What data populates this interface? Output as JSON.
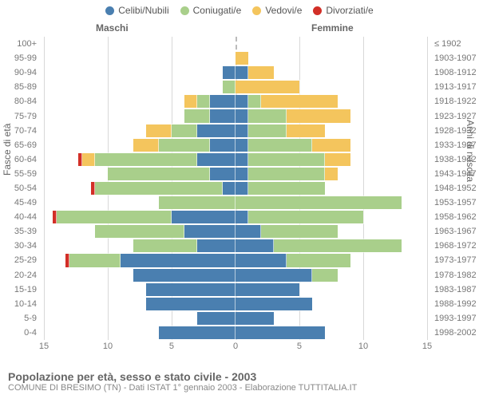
{
  "legend": {
    "items": [
      {
        "key": "single",
        "label": "Celibi/Nubili",
        "color": "#4a7fb0"
      },
      {
        "key": "married",
        "label": "Coniugati/e",
        "color": "#a9cf8b"
      },
      {
        "key": "widowed",
        "label": "Vedovi/e",
        "color": "#f4c55d"
      },
      {
        "key": "divorced",
        "label": "Divorziati/e",
        "color": "#d22f27"
      }
    ]
  },
  "column_heads": {
    "male": "Maschi",
    "female": "Femmine"
  },
  "axis_titles": {
    "left": "Fasce di età",
    "right": "Anni di nascita"
  },
  "footer": {
    "title": "Popolazione per età, sesso e stato civile - 2003",
    "subtitle": "COMUNE DI BRESIMO (TN) - Dati ISTAT 1° gennaio 2003 - Elaborazione TUTTITALIA.IT"
  },
  "colors": {
    "single": "#4a7fb0",
    "married": "#a9cf8b",
    "widowed": "#f4c55d",
    "divorced": "#d22f27",
    "grid": "#dddddd",
    "background": "#ffffff"
  },
  "x_axis": {
    "min": -15,
    "max": 15,
    "ticks": [
      15,
      10,
      5,
      0,
      5,
      10,
      15
    ],
    "positions": [
      -15,
      -10,
      -5,
      0,
      5,
      10,
      15
    ]
  },
  "rows": [
    {
      "age": "100+",
      "birth": "≤ 1902",
      "male": {
        "single": 0,
        "married": 0,
        "widowed": 0,
        "divorced": 0
      },
      "female": {
        "single": 0,
        "married": 0,
        "widowed": 0,
        "divorced": 0
      }
    },
    {
      "age": "95-99",
      "birth": "1903-1907",
      "male": {
        "single": 0,
        "married": 0,
        "widowed": 0,
        "divorced": 0
      },
      "female": {
        "single": 0,
        "married": 0,
        "widowed": 1,
        "divorced": 0
      }
    },
    {
      "age": "90-94",
      "birth": "1908-1912",
      "male": {
        "single": 1,
        "married": 0,
        "widowed": 0,
        "divorced": 0
      },
      "female": {
        "single": 1,
        "married": 0,
        "widowed": 2,
        "divorced": 0
      }
    },
    {
      "age": "85-89",
      "birth": "1913-1917",
      "male": {
        "single": 0,
        "married": 1,
        "widowed": 0,
        "divorced": 0
      },
      "female": {
        "single": 0,
        "married": 0,
        "widowed": 5,
        "divorced": 0
      }
    },
    {
      "age": "80-84",
      "birth": "1918-1922",
      "male": {
        "single": 2,
        "married": 1,
        "widowed": 1,
        "divorced": 0
      },
      "female": {
        "single": 1,
        "married": 1,
        "widowed": 6,
        "divorced": 0
      }
    },
    {
      "age": "75-79",
      "birth": "1923-1927",
      "male": {
        "single": 2,
        "married": 2,
        "widowed": 0,
        "divorced": 0
      },
      "female": {
        "single": 1,
        "married": 3,
        "widowed": 5,
        "divorced": 0
      }
    },
    {
      "age": "70-74",
      "birth": "1928-1932",
      "male": {
        "single": 3,
        "married": 2,
        "widowed": 2,
        "divorced": 0
      },
      "female": {
        "single": 1,
        "married": 3,
        "widowed": 3,
        "divorced": 0
      }
    },
    {
      "age": "65-69",
      "birth": "1933-1937",
      "male": {
        "single": 2,
        "married": 4,
        "widowed": 2,
        "divorced": 0
      },
      "female": {
        "single": 1,
        "married": 5,
        "widowed": 3,
        "divorced": 0
      }
    },
    {
      "age": "60-64",
      "birth": "1938-1942",
      "male": {
        "single": 3,
        "married": 8,
        "widowed": 1,
        "divorced": 0.3
      },
      "female": {
        "single": 1,
        "married": 6,
        "widowed": 2,
        "divorced": 0
      }
    },
    {
      "age": "55-59",
      "birth": "1943-1947",
      "male": {
        "single": 2,
        "married": 8,
        "widowed": 0,
        "divorced": 0
      },
      "female": {
        "single": 1,
        "married": 6,
        "widowed": 1,
        "divorced": 0
      }
    },
    {
      "age": "50-54",
      "birth": "1948-1952",
      "male": {
        "single": 1,
        "married": 10,
        "widowed": 0,
        "divorced": 0.3
      },
      "female": {
        "single": 1,
        "married": 6,
        "widowed": 0,
        "divorced": 0
      }
    },
    {
      "age": "45-49",
      "birth": "1953-1957",
      "male": {
        "single": 0,
        "married": 6,
        "widowed": 0,
        "divorced": 0
      },
      "female": {
        "single": 0,
        "married": 13,
        "widowed": 0,
        "divorced": 0
      }
    },
    {
      "age": "40-44",
      "birth": "1958-1962",
      "male": {
        "single": 5,
        "married": 9,
        "widowed": 0,
        "divorced": 0.3
      },
      "female": {
        "single": 1,
        "married": 9,
        "widowed": 0,
        "divorced": 0
      }
    },
    {
      "age": "35-39",
      "birth": "1963-1967",
      "male": {
        "single": 4,
        "married": 7,
        "widowed": 0,
        "divorced": 0
      },
      "female": {
        "single": 2,
        "married": 6,
        "widowed": 0,
        "divorced": 0
      }
    },
    {
      "age": "30-34",
      "birth": "1968-1972",
      "male": {
        "single": 3,
        "married": 5,
        "widowed": 0,
        "divorced": 0
      },
      "female": {
        "single": 3,
        "married": 10,
        "widowed": 0,
        "divorced": 0
      }
    },
    {
      "age": "25-29",
      "birth": "1973-1977",
      "male": {
        "single": 9,
        "married": 4,
        "widowed": 0,
        "divorced": 0.3
      },
      "female": {
        "single": 4,
        "married": 5,
        "widowed": 0,
        "divorced": 0
      }
    },
    {
      "age": "20-24",
      "birth": "1978-1982",
      "male": {
        "single": 8,
        "married": 0,
        "widowed": 0,
        "divorced": 0
      },
      "female": {
        "single": 6,
        "married": 2,
        "widowed": 0,
        "divorced": 0
      }
    },
    {
      "age": "15-19",
      "birth": "1983-1987",
      "male": {
        "single": 7,
        "married": 0,
        "widowed": 0,
        "divorced": 0
      },
      "female": {
        "single": 5,
        "married": 0,
        "widowed": 0,
        "divorced": 0
      }
    },
    {
      "age": "10-14",
      "birth": "1988-1992",
      "male": {
        "single": 7,
        "married": 0,
        "widowed": 0,
        "divorced": 0
      },
      "female": {
        "single": 6,
        "married": 0,
        "widowed": 0,
        "divorced": 0
      }
    },
    {
      "age": "5-9",
      "birth": "1993-1997",
      "male": {
        "single": 3,
        "married": 0,
        "widowed": 0,
        "divorced": 0
      },
      "female": {
        "single": 3,
        "married": 0,
        "widowed": 0,
        "divorced": 0
      }
    },
    {
      "age": "0-4",
      "birth": "1998-2002",
      "male": {
        "single": 6,
        "married": 0,
        "widowed": 0,
        "divorced": 0
      },
      "female": {
        "single": 7,
        "married": 0,
        "widowed": 0,
        "divorced": 0
      }
    }
  ]
}
